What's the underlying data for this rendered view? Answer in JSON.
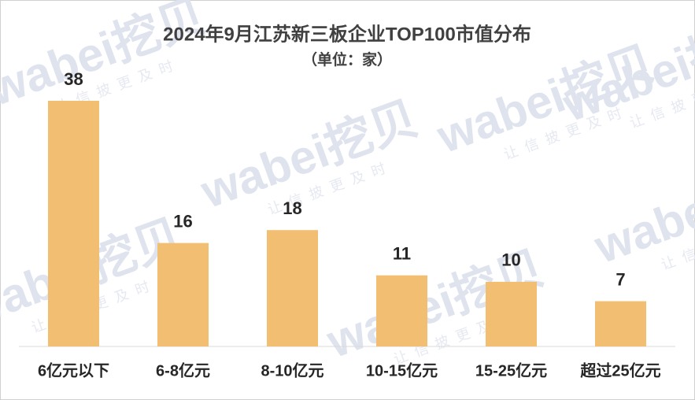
{
  "chart_data": {
    "type": "bar",
    "title": "2024年9月江苏新三板企业TOP100市值分布",
    "subtitle": "（单位：家）",
    "categories": [
      "6亿元以下",
      "6-8亿元",
      "8-10亿元",
      "10-15亿元",
      "15-25亿元",
      "超过25亿元"
    ],
    "values": [
      38,
      16,
      18,
      11,
      10,
      7
    ],
    "color": "#f2be72"
  },
  "watermark": {
    "brand": "wabei挖贝",
    "slogan": "让信披更及时"
  }
}
